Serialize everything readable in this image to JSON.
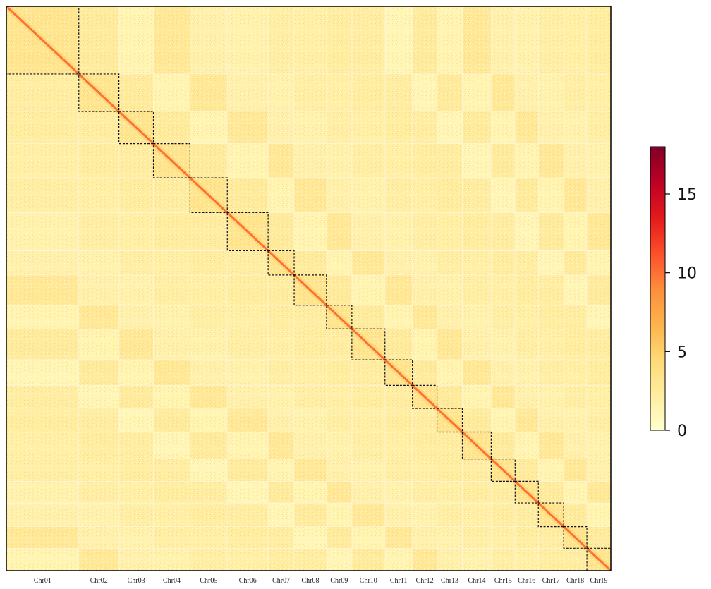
{
  "chart_data": {
    "type": "heatmap",
    "title": "",
    "xlabel": "",
    "ylabel": "",
    "categories": [
      "Chr01",
      "Chr02",
      "Chr03",
      "Chr04",
      "Chr05",
      "Chr06",
      "Chr07",
      "Chr08",
      "Chr09",
      "Chr10",
      "Chr11",
      "Chr12",
      "Chr13",
      "Chr14",
      "Chr15",
      "Chr16",
      "Chr17",
      "Chr18",
      "Chr19"
    ],
    "relative_sizes": [
      103,
      57,
      49,
      52,
      53,
      58,
      37,
      46,
      36,
      47,
      39,
      35,
      36,
      41,
      34,
      33,
      36,
      33,
      34
    ],
    "colorbar": {
      "range": [
        0,
        18
      ],
      "ticks": [
        0,
        5,
        10,
        15
      ],
      "tick_labels": [
        "0",
        "5",
        "10",
        "15"
      ],
      "colors": [
        "#ffffcc",
        "#ffeda0",
        "#fed976",
        "#feb24c",
        "#fd8d3c",
        "#fc4e2a",
        "#e31a1c",
        "#bd0026",
        "#800026"
      ]
    },
    "diagonal_value": 10,
    "background_value": 2,
    "grid": false,
    "chromosome_boxes": "dashed"
  }
}
